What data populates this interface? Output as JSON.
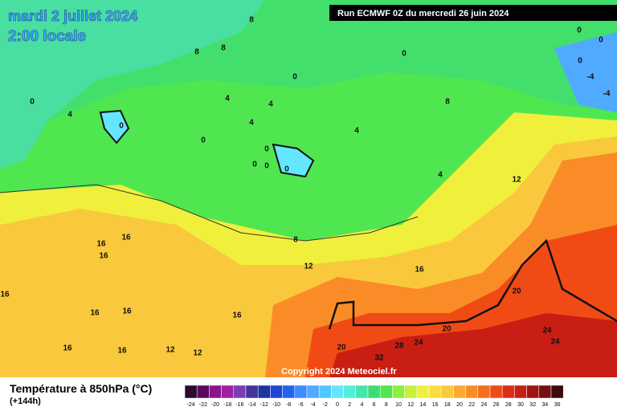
{
  "header": {
    "title": "mardi 2 juillet 2024",
    "time": "2:00 locale",
    "run": "Run ECMWF 0Z du mercredi 26 juin 2024"
  },
  "copyright": "Copyright 2024 Meteociel.fr",
  "legend": {
    "title": "Température à 850hPa (°C)",
    "subtitle": "(+144h)",
    "ticks": [
      -24,
      -22,
      -20,
      -18,
      -16,
      -14,
      -12,
      -10,
      -8,
      -6,
      -4,
      -2,
      0,
      2,
      4,
      6,
      8,
      10,
      12,
      14,
      16,
      18,
      20,
      22,
      24,
      26,
      28,
      30,
      32,
      34,
      36
    ],
    "colors": [
      "#2d0a2d",
      "#5a0a5a",
      "#8c148c",
      "#a01ea0",
      "#7d3cb4",
      "#46329b",
      "#1e32a0",
      "#1e46d2",
      "#1e64f0",
      "#3c8cff",
      "#50aaff",
      "#50c8ff",
      "#64e6ff",
      "#50f0dc",
      "#46e6aa",
      "#3cdc78",
      "#50e650",
      "#8cf03c",
      "#c8f03c",
      "#f0f03c",
      "#fadc3c",
      "#fac83c",
      "#faaa32",
      "#fa8c28",
      "#f56e1e",
      "#f04b14",
      "#dc2d14",
      "#c81e14",
      "#a01414",
      "#781010",
      "#3c0a0a"
    ]
  },
  "contour_labels": [
    "8",
    "8",
    "8",
    "0",
    "0",
    "0",
    "0",
    "-4",
    "-4",
    "0",
    "4",
    "4",
    "4",
    "8",
    "0",
    "4",
    "0",
    "0",
    "4",
    "0",
    "0",
    "0",
    "0",
    "4",
    "12",
    "16",
    "16",
    "16",
    "8",
    "12",
    "16",
    "16",
    "16",
    "16",
    "16",
    "20",
    "20",
    "24",
    "24",
    "16",
    "16",
    "12",
    "12",
    "20",
    "28",
    "24",
    "32"
  ]
}
